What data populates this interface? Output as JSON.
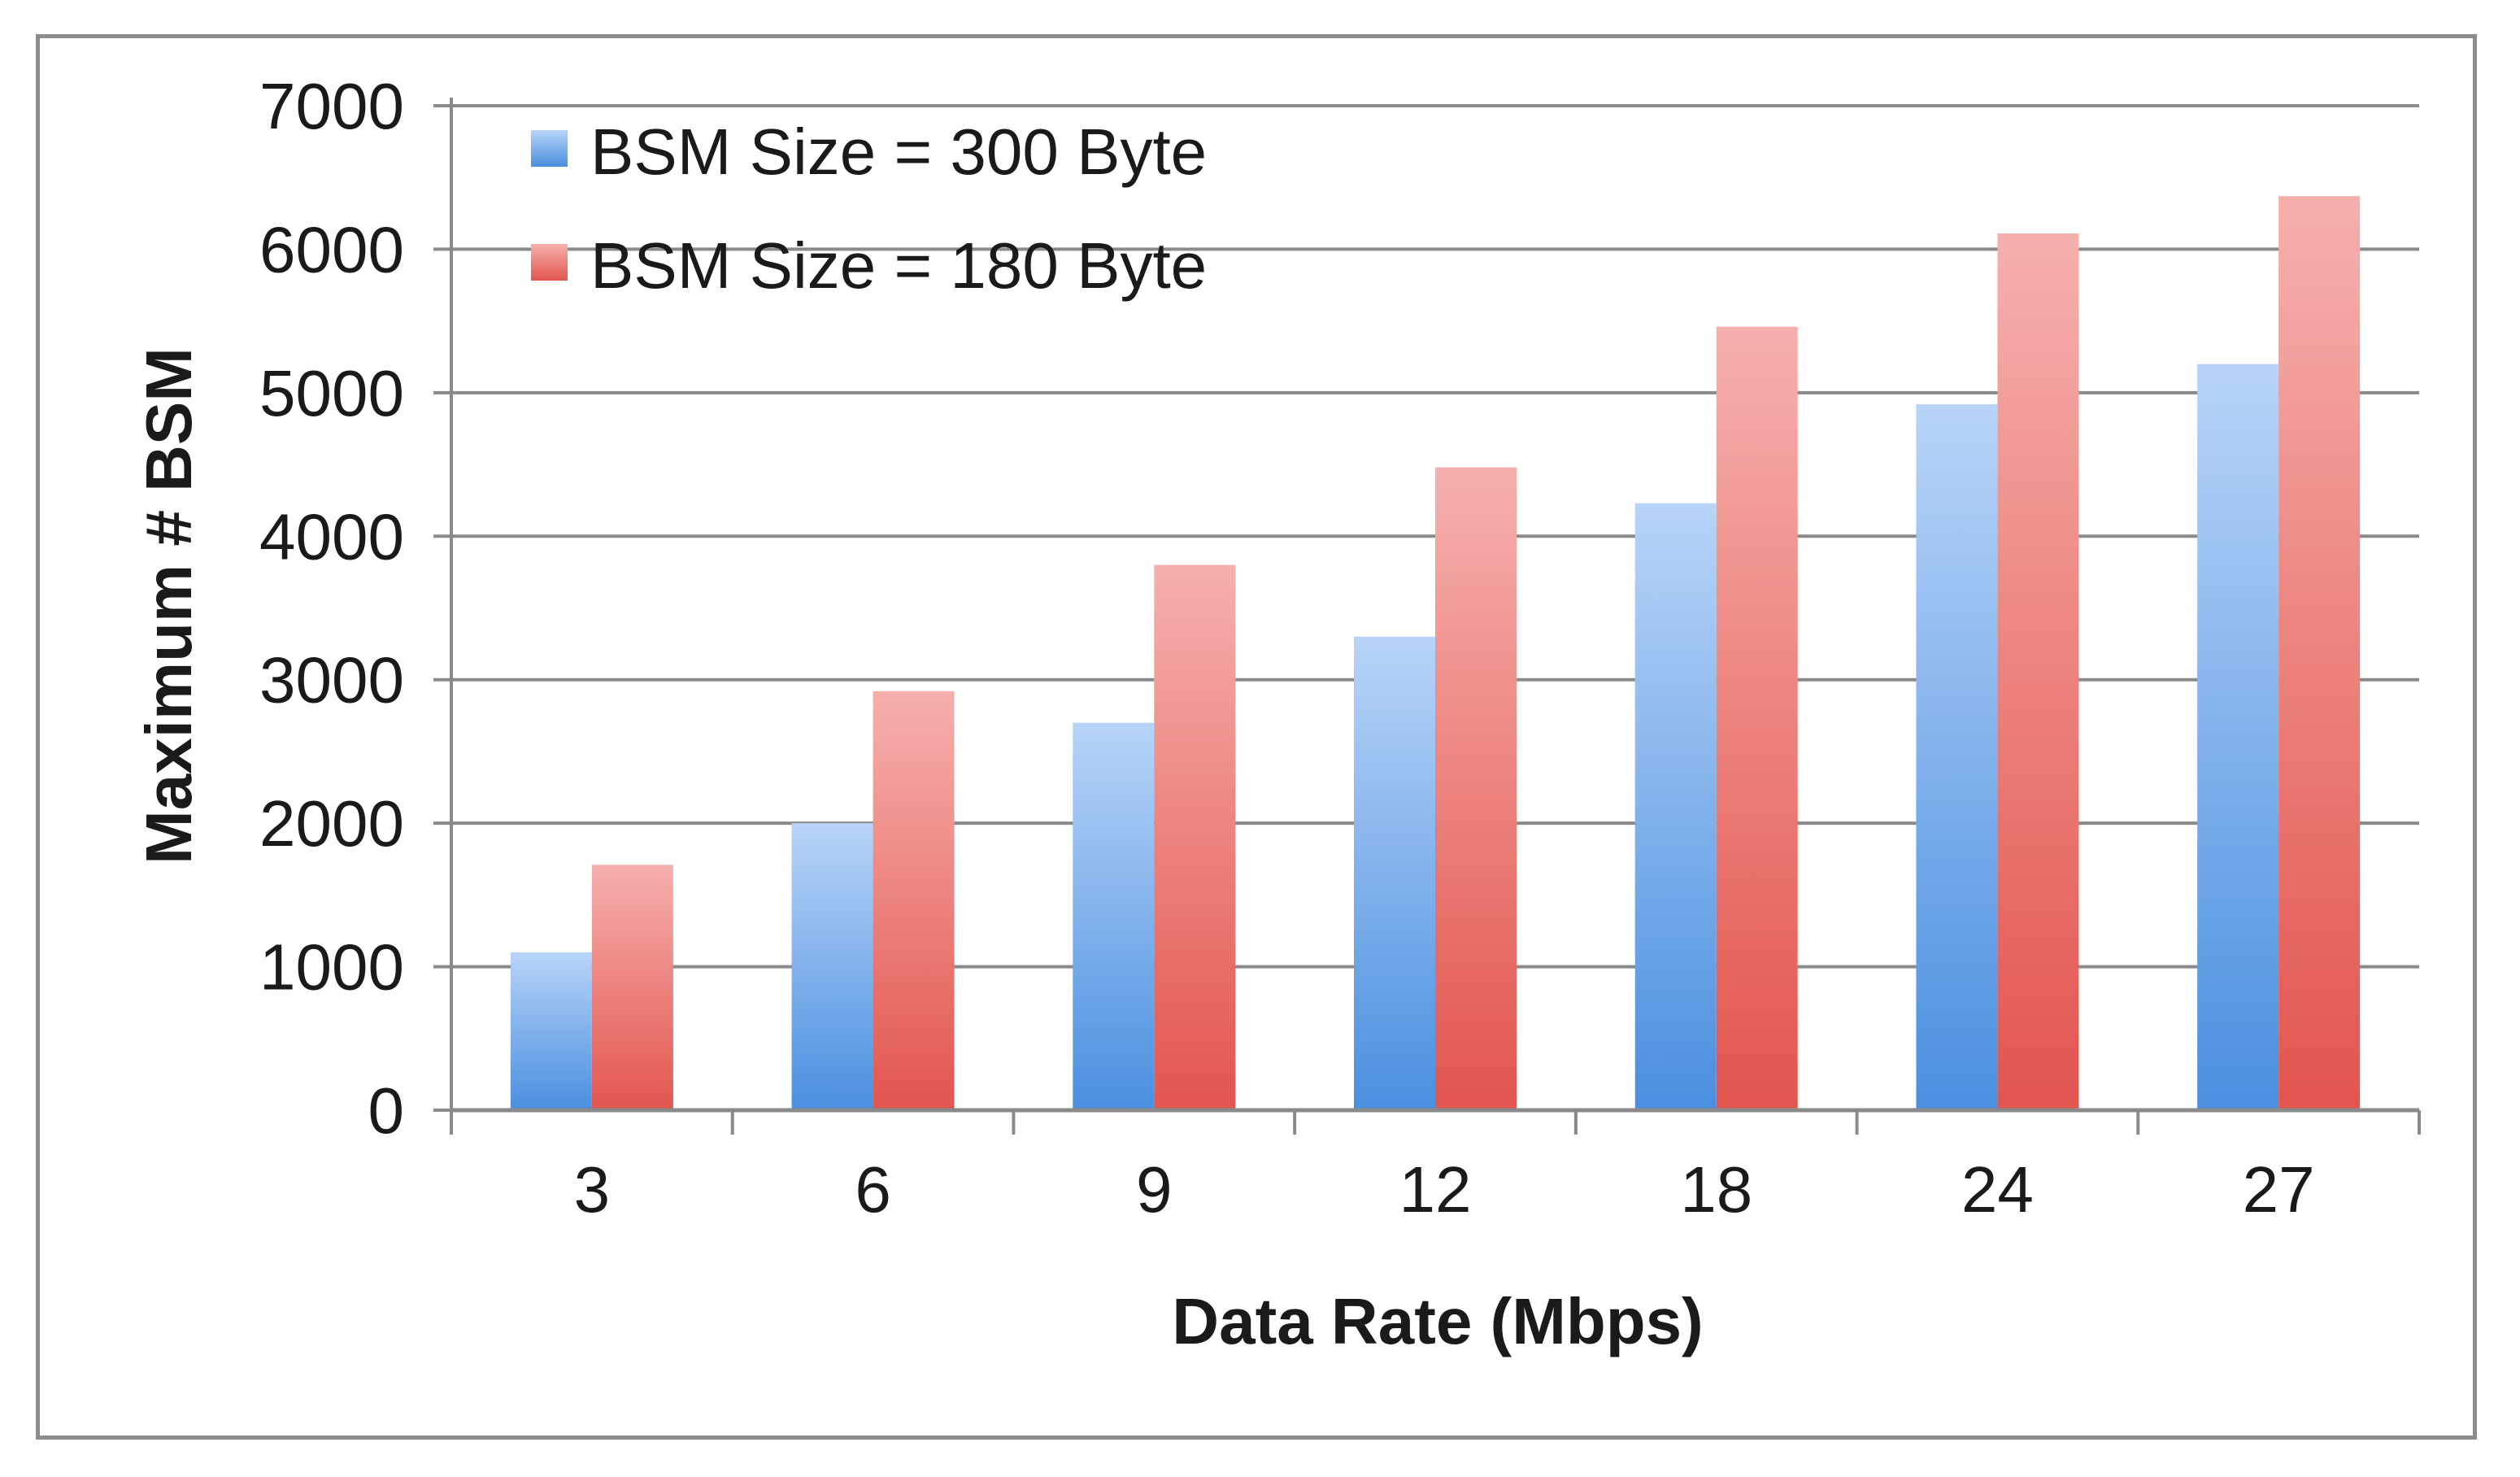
{
  "chart_data": {
    "type": "bar",
    "title": "",
    "xlabel": "Data Rate (Mbps)",
    "ylabel": "Maximum # BSM",
    "categories": [
      "3",
      "6",
      "9",
      "12",
      "18",
      "24",
      "27"
    ],
    "ylim": [
      0,
      7000
    ],
    "yticks": [
      0,
      1000,
      2000,
      3000,
      4000,
      5000,
      6000,
      7000
    ],
    "grid": true,
    "legend_position": "top-left",
    "series": [
      {
        "name": "BSM Size = 300 Byte",
        "color_top": "#b8d4f8",
        "color_bottom": "#4a8fdf",
        "values": [
          1100,
          2000,
          2700,
          3300,
          4230,
          4920,
          5200
        ]
      },
      {
        "name": "BSM Size = 180 Byte",
        "color_top": "#f6b0ad",
        "color_bottom": "#e2554f",
        "values": [
          1710,
          2920,
          3800,
          4480,
          5460,
          6110,
          6370
        ]
      }
    ]
  }
}
